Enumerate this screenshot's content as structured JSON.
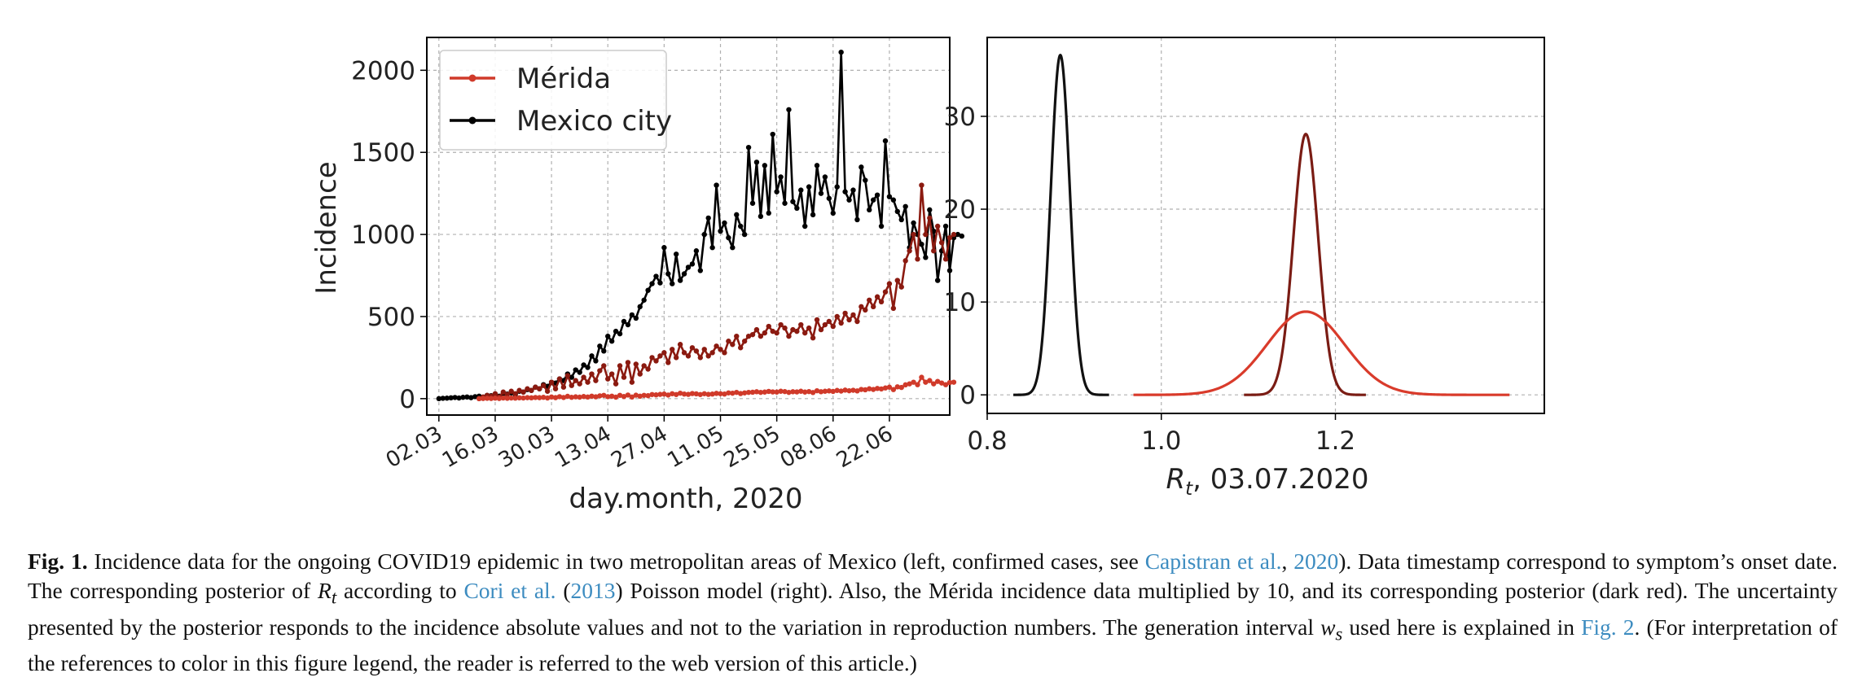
{
  "chart_data": [
    {
      "type": "line",
      "panel": "left",
      "xlabel": "day.month, 2020",
      "ylabel": "Incidence",
      "x_tick_labels": [
        "02.03",
        "16.03",
        "30.03",
        "13.04",
        "27.04",
        "11.05",
        "25.05",
        "08.06",
        "22.06"
      ],
      "y_tick_labels": [
        "0",
        "500",
        "1000",
        "1500",
        "2000"
      ],
      "y_ticks": [
        0,
        500,
        1000,
        1500,
        2000
      ],
      "xlim": [
        -3,
        127
      ],
      "ylim": [
        -100,
        2200
      ],
      "grid": true,
      "legend_position": "top-left",
      "legend": [
        "Mérida",
        "Mexico city"
      ],
      "series": [
        {
          "name": "Mexico city",
          "color": "#000000",
          "x_start": 0,
          "values": [
            0,
            2,
            3,
            5,
            7,
            4,
            8,
            10,
            6,
            12,
            15,
            9,
            20,
            18,
            25,
            15,
            30,
            28,
            35,
            25,
            45,
            40,
            55,
            50,
            70,
            60,
            85,
            75,
            100,
            95,
            120,
            110,
            150,
            130,
            175,
            160,
            205,
            190,
            260,
            230,
            320,
            290,
            380,
            350,
            410,
            395,
            470,
            450,
            510,
            490,
            560,
            600,
            660,
            700,
            745,
            705,
            920,
            760,
            700,
            880,
            720,
            760,
            800,
            820,
            900,
            780,
            1000,
            1100,
            920,
            1300,
            1020,
            1070,
            980,
            920,
            1120,
            1050,
            1000,
            1530,
            1190,
            1440,
            1110,
            1420,
            1130,
            1610,
            1260,
            1350,
            1190,
            1760,
            1200,
            1160,
            1270,
            1050,
            1290,
            1120,
            1420,
            1250,
            1350,
            1220,
            1130,
            1290,
            2110,
            1260,
            1210,
            1270,
            1090,
            1410,
            1330,
            1150,
            1210,
            1240,
            1050,
            1570,
            1230,
            1210,
            1140,
            1090,
            1170,
            920,
            1070,
            1000,
            940,
            860,
            1150,
            1020,
            720,
            900,
            1050,
            780,
            980,
            1000,
            990
          ]
        },
        {
          "name": "Mérida x10 (dark red)",
          "color": "#8b1a10",
          "x_start": 10,
          "values": [
            0,
            10,
            20,
            15,
            30,
            10,
            40,
            25,
            45,
            30,
            50,
            40,
            60,
            50,
            70,
            60,
            80,
            45,
            100,
            60,
            120,
            70,
            140,
            80,
            110,
            90,
            130,
            100,
            150,
            110,
            170,
            200,
            120,
            150,
            90,
            200,
            130,
            220,
            100,
            210,
            150,
            200,
            180,
            250,
            230,
            260,
            280,
            220,
            300,
            250,
            330,
            280,
            260,
            310,
            290,
            250,
            300,
            260,
            280,
            320,
            300,
            280,
            350,
            330,
            380,
            310,
            350,
            380,
            390,
            420,
            380,
            400,
            440,
            410,
            400,
            450,
            430,
            380,
            420,
            410,
            450,
            400,
            430,
            370,
            480,
            420,
            450,
            470,
            440,
            500,
            460,
            520,
            480,
            510,
            470,
            560,
            540,
            600,
            560,
            620,
            590,
            650,
            700,
            550,
            720,
            680,
            840,
            900,
            1000,
            850,
            1300,
            1000,
            1100,
            900,
            1050,
            950,
            850,
            980,
            1000
          ]
        },
        {
          "name": "Mérida",
          "color": "#d03a2a",
          "x_start": 10,
          "values": [
            0,
            1,
            2,
            1,
            3,
            1,
            4,
            2,
            4,
            3,
            5,
            4,
            6,
            5,
            7,
            6,
            8,
            4,
            10,
            6,
            12,
            7,
            14,
            8,
            11,
            9,
            13,
            10,
            15,
            11,
            17,
            20,
            12,
            15,
            9,
            20,
            13,
            22,
            10,
            21,
            15,
            20,
            18,
            25,
            23,
            26,
            28,
            22,
            30,
            25,
            33,
            28,
            26,
            31,
            29,
            25,
            30,
            26,
            28,
            32,
            30,
            28,
            35,
            33,
            38,
            31,
            35,
            38,
            39,
            42,
            38,
            40,
            44,
            41,
            40,
            45,
            43,
            38,
            42,
            41,
            45,
            40,
            43,
            37,
            48,
            42,
            45,
            47,
            44,
            50,
            46,
            52,
            48,
            51,
            47,
            56,
            54,
            60,
            56,
            62,
            59,
            65,
            70,
            55,
            72,
            68,
            84,
            90,
            100,
            85,
            130,
            100,
            110,
            90,
            105,
            95,
            85,
            98,
            100
          ]
        }
      ]
    },
    {
      "type": "line",
      "panel": "right",
      "xlabel": "R_t, 03.07.2020",
      "x_tick_labels": [
        "0.8",
        "1.0",
        "1.2"
      ],
      "x_ticks": [
        0.8,
        1.0,
        1.2
      ],
      "y_tick_labels": [
        "0",
        "10",
        "20",
        "30"
      ],
      "y_ticks": [
        0,
        10,
        20,
        30
      ],
      "xlim": [
        0.8,
        1.44
      ],
      "ylim": [
        -2,
        38.5
      ],
      "grid": true,
      "series": [
        {
          "name": "Mexico city posterior",
          "color": "#111111",
          "mean": 0.884,
          "sd": 0.0109,
          "xrange": [
            0.83,
            0.94
          ]
        },
        {
          "name": "Mérida x10 posterior",
          "color": "#7a1c14",
          "mean": 1.166,
          "sd": 0.0142,
          "xrange": [
            1.095,
            1.235
          ]
        },
        {
          "name": "Mérida posterior",
          "color": "#d93b2b",
          "mean": 1.166,
          "sd": 0.0445,
          "xrange": [
            0.968,
            1.4
          ]
        }
      ]
    }
  ],
  "caption": {
    "label": "Fig. 1.",
    "t1": " Incidence data for the ongoing COVID19 epidemic in two metropolitan areas of Mexico (left, confirmed cases, see ",
    "ref1": "Capistran et al.",
    "t2": ", ",
    "ref2": "2020",
    "t3": "). Data timestamp correspond to symptom’s onset date. The corresponding posterior of ",
    "rt_base": "R",
    "rt_sub": "t",
    "t4": " according to ",
    "ref3": "Cori et al.",
    "t5": " (",
    "ref4": "2013",
    "t6": ") Poisson model (right). Also, the Mérida incidence data multiplied by 10, and its corresponding posterior (dark red). The uncertainty presented by the posterior responds to the incidence absolute values and not to the variation in reproduction numbers. The generation interval ",
    "w_base": "w",
    "w_sub": "s",
    "t7": " used here is explained in ",
    "ref5": "Fig. 2",
    "t8": ". (For interpretation of the references to color in this figure legend, the reader is referred to the web version of this article.)"
  }
}
